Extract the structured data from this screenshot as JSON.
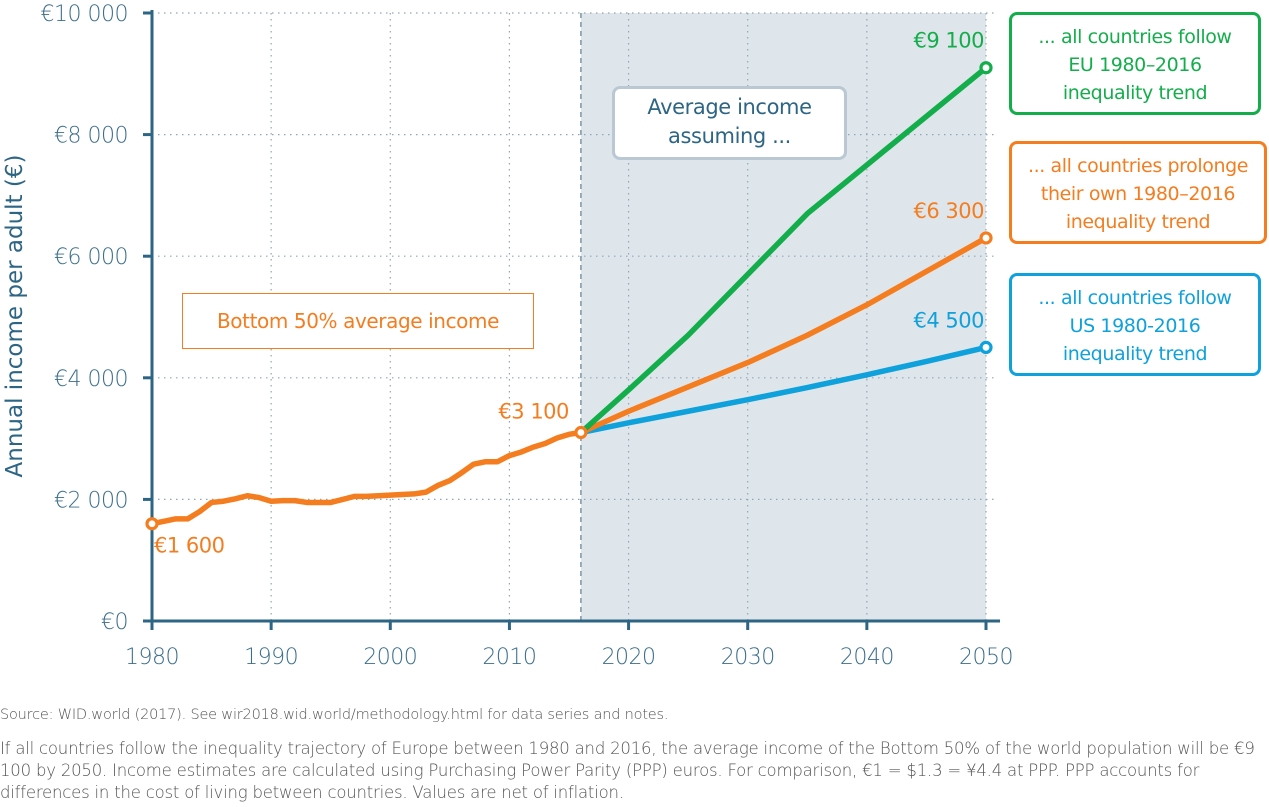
{
  "chart_data": {
    "type": "line",
    "ylabel": "Annual income per adult (€)",
    "xlabel": "",
    "xlim": [
      1980,
      2050
    ],
    "ylim": [
      0,
      10000
    ],
    "x_ticks": [
      1980,
      1990,
      2000,
      2010,
      2020,
      2030,
      2040,
      2050
    ],
    "x_tick_labels": [
      "1980",
      "1990",
      "2000",
      "2010",
      "2020",
      "2030",
      "2040",
      "2050"
    ],
    "y_ticks": [
      0,
      2000,
      4000,
      6000,
      8000,
      10000
    ],
    "y_tick_labels": [
      "€0",
      "€2 000",
      "€4 000",
      "€6 000",
      "€8 000",
      "€10 000"
    ],
    "grid": true,
    "projection_shading_start": 2016,
    "projection_shading_end": 2050,
    "series": [
      {
        "name": "Bottom 50% average income",
        "color": "#f47d20",
        "x": [
          1980,
          1981,
          1982,
          1983,
          1984,
          1985,
          1986,
          1987,
          1988,
          1989,
          1990,
          1991,
          1992,
          1993,
          1994,
          1995,
          1996,
          1997,
          1998,
          1999,
          2000,
          2001,
          2002,
          2003,
          2004,
          2005,
          2006,
          2007,
          2008,
          2009,
          2010,
          2011,
          2012,
          2013,
          2014,
          2015,
          2016
        ],
        "values": [
          1600,
          1640,
          1680,
          1680,
          1800,
          1950,
          1970,
          2010,
          2060,
          2030,
          1970,
          1980,
          1980,
          1950,
          1950,
          1950,
          2000,
          2050,
          2050,
          2060,
          2070,
          2080,
          2090,
          2120,
          2230,
          2310,
          2440,
          2580,
          2620,
          2620,
          2720,
          2780,
          2860,
          2920,
          3010,
          3070,
          3100
        ]
      },
      {
        "name": "... all countries follow EU 1980–2016 inequality trend",
        "color": "#13ae4b",
        "x": [
          2016,
          2020,
          2025,
          2030,
          2035,
          2040,
          2045,
          2050
        ],
        "values": [
          3100,
          3800,
          4700,
          5700,
          6700,
          7500,
          8300,
          9100
        ]
      },
      {
        "name": "... all countries prolonge their own 1980–2016 inequality trend",
        "color": "#f47d20",
        "x": [
          2016,
          2020,
          2025,
          2030,
          2035,
          2040,
          2045,
          2050
        ],
        "values": [
          3100,
          3450,
          3850,
          4250,
          4700,
          5200,
          5750,
          6300
        ]
      },
      {
        "name": "... all countries follow US 1980-2016 inequality trend",
        "color": "#0fa1db",
        "x": [
          2016,
          2020,
          2025,
          2030,
          2035,
          2040,
          2045,
          2050
        ],
        "values": [
          3100,
          3260,
          3450,
          3640,
          3840,
          4050,
          4270,
          4500
        ]
      }
    ],
    "annotations": [
      {
        "text": "€1 600",
        "x": 1980,
        "y": 1600,
        "color": "#f47d20"
      },
      {
        "text": "€3 100",
        "x": 2016,
        "y": 3100,
        "color": "#f47d20"
      },
      {
        "text": "€9 100",
        "x": 2050,
        "y": 9100,
        "color": "#13ae4b"
      },
      {
        "text": "€6 300",
        "x": 2050,
        "y": 6300,
        "color": "#f47d20"
      },
      {
        "text": "€4 500",
        "x": 2050,
        "y": 4500,
        "color": "#0fa1db"
      }
    ]
  },
  "labels": {
    "bottom_series": "Bottom 50%  average income",
    "assume_line1": "Average income",
    "assume_line2": "assuming ...",
    "legend": [
      {
        "lines": [
          "... all countries follow",
          "EU 1980–2016",
          "inequality trend"
        ],
        "color": "#13ae4b"
      },
      {
        "lines": [
          "... all countries prolonge",
          "their own 1980–2016",
          "inequality trend"
        ],
        "color": "#f47d20"
      },
      {
        "lines": [
          "... all countries follow",
          "US 1980-2016",
          "inequality trend"
        ],
        "color": "#0fa1db"
      }
    ]
  },
  "footer": {
    "source": "Source: WID.world (2017). See wir2018.wid.world/methodology.html for data series and notes.",
    "caption": "If all countries follow the inequality trajectory of Europe between 1980 and 2016, the average income of the Bottom 50% of the world population will be €9 100 by 2050. Income estimates are calculated using Purchasing Power Parity (PPP) euros. For comparison, €1 = $1.3 = ¥4.4 at PPP.  PPP accounts for differences in the cost of living between countries. Values are net of inflation."
  },
  "colors": {
    "axis": "#2d6585",
    "shading": "#dfe6eb",
    "grid": "#8fa6b6"
  }
}
